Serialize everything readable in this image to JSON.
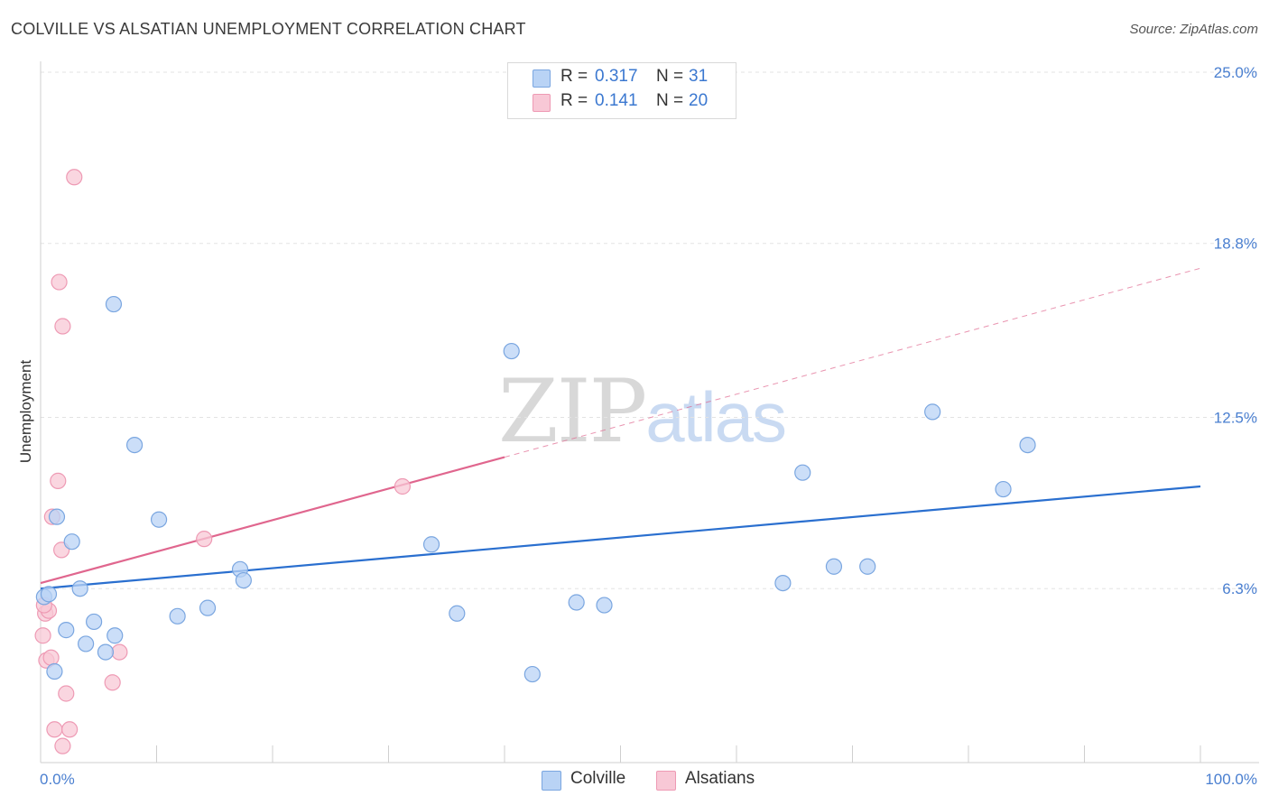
{
  "title": "COLVILLE VS ALSATIAN UNEMPLOYMENT CORRELATION CHART",
  "source": "Source: ZipAtlas.com",
  "watermark": {
    "zip": "ZIP",
    "atlas": "atlas"
  },
  "legend": {
    "rows": [
      {
        "r_label": "R =",
        "r_value": "0.317",
        "n_label": "N =",
        "n_value": "31"
      },
      {
        "r_label": "R =",
        "r_value": "0.141",
        "n_label": "N =",
        "n_value": "20"
      }
    ]
  },
  "bottom_legend": [
    {
      "label": "Colville"
    },
    {
      "label": "Alsatians"
    }
  ],
  "colors": {
    "colville_fill": "#b9d3f5",
    "colville_stroke": "#7aa6e0",
    "colville_line": "#2a6fcf",
    "alsatian_fill": "#f8c8d6",
    "alsatian_stroke": "#ee9ab4",
    "alsatian_line": "#e0668e",
    "grid": "#e3e3e3",
    "tick_text": "#4a7fd0"
  },
  "chart_data": {
    "type": "scatter",
    "title": "COLVILLE VS ALSATIAN UNEMPLOYMENT CORRELATION CHART",
    "xlabel": "",
    "ylabel": "Unemployment",
    "xlim": [
      0,
      100
    ],
    "ylim": [
      0,
      25
    ],
    "x_tick_labels": [
      "0.0%",
      "100.0%"
    ],
    "y_ticks": [
      6.3,
      12.5,
      18.8,
      25.0
    ],
    "y_tick_labels": [
      "6.3%",
      "12.5%",
      "18.8%",
      "25.0%"
    ],
    "grid": true,
    "series": [
      {
        "name": "Colville",
        "points": [
          [
            0.3,
            6.0
          ],
          [
            0.7,
            6.1
          ],
          [
            1.2,
            3.3
          ],
          [
            1.4,
            8.9
          ],
          [
            2.2,
            4.8
          ],
          [
            2.7,
            8.0
          ],
          [
            3.4,
            6.3
          ],
          [
            3.9,
            4.3
          ],
          [
            4.6,
            5.1
          ],
          [
            5.6,
            4.0
          ],
          [
            6.4,
            4.6
          ],
          [
            6.3,
            16.6
          ],
          [
            8.1,
            11.5
          ],
          [
            10.2,
            8.8
          ],
          [
            11.8,
            5.3
          ],
          [
            14.4,
            5.6
          ],
          [
            17.2,
            7.0
          ],
          [
            17.5,
            6.6
          ],
          [
            33.7,
            7.9
          ],
          [
            35.9,
            5.4
          ],
          [
            40.6,
            14.9
          ],
          [
            42.4,
            3.2
          ],
          [
            46.2,
            5.8
          ],
          [
            48.6,
            5.7
          ],
          [
            64.0,
            6.5
          ],
          [
            65.7,
            10.5
          ],
          [
            68.4,
            7.1
          ],
          [
            71.3,
            7.1
          ],
          [
            76.9,
            12.7
          ],
          [
            83.0,
            9.9
          ],
          [
            85.1,
            11.5
          ]
        ],
        "trend": {
          "x": [
            0,
            100
          ],
          "y": [
            6.3,
            10.0
          ]
        }
      },
      {
        "name": "Alsatians",
        "points": [
          [
            0.2,
            4.6
          ],
          [
            0.4,
            5.4
          ],
          [
            0.5,
            3.7
          ],
          [
            0.7,
            5.5
          ],
          [
            0.9,
            3.8
          ],
          [
            1.0,
            8.9
          ],
          [
            1.2,
            1.2
          ],
          [
            1.5,
            10.2
          ],
          [
            1.8,
            7.7
          ],
          [
            1.9,
            0.6
          ],
          [
            1.9,
            15.8
          ],
          [
            1.6,
            17.4
          ],
          [
            2.2,
            2.5
          ],
          [
            2.5,
            1.2
          ],
          [
            2.9,
            21.2
          ],
          [
            6.2,
            2.9
          ],
          [
            6.8,
            4.0
          ],
          [
            14.1,
            8.1
          ],
          [
            31.2,
            10.0
          ],
          [
            0.3,
            5.7
          ]
        ],
        "trend": {
          "x": [
            0,
            100
          ],
          "y": [
            6.5,
            17.9
          ],
          "solid_until_x": 40
        }
      }
    ]
  }
}
